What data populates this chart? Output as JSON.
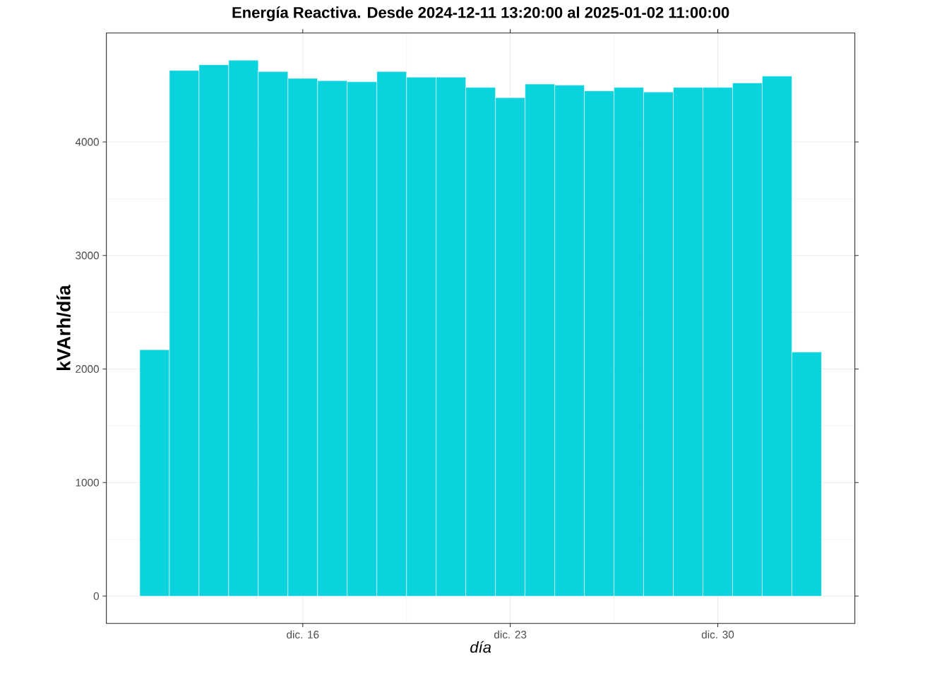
{
  "chart_data": {
    "type": "bar",
    "title": "Energía Reactiva. Desde  2024-12-11 13:20:00  al  2025-01-02 11:00:00",
    "xlabel": "día",
    "ylabel": "kVArh/día",
    "x": [
      "2024-12-11",
      "2024-12-12",
      "2024-12-13",
      "2024-12-14",
      "2024-12-15",
      "2024-12-16",
      "2024-12-17",
      "2024-12-18",
      "2024-12-19",
      "2024-12-20",
      "2024-12-21",
      "2024-12-22",
      "2024-12-23",
      "2024-12-24",
      "2024-12-25",
      "2024-12-26",
      "2024-12-27",
      "2024-12-28",
      "2024-12-29",
      "2024-12-30",
      "2024-12-31",
      "2025-01-01",
      "2025-01-02"
    ],
    "values": [
      2170,
      4630,
      4680,
      4720,
      4620,
      4560,
      4540,
      4530,
      4620,
      4570,
      4570,
      4480,
      4390,
      4510,
      4500,
      4450,
      4480,
      4440,
      4480,
      4480,
      4520,
      4580,
      2150
    ],
    "color": "#0bd3de",
    "xlim": [
      "2024-12-09T09:00",
      "2025-01-03T15:00"
    ],
    "xticks": [
      {
        "value": "2024-12-16",
        "label": "dic. 16"
      },
      {
        "value": "2024-12-23",
        "label": "dic. 23"
      },
      {
        "value": "2024-12-30",
        "label": "dic. 30"
      }
    ],
    "ylim": [
      -240,
      4960
    ],
    "yticks": [
      0,
      1000,
      2000,
      3000,
      4000
    ],
    "grid": true
  }
}
